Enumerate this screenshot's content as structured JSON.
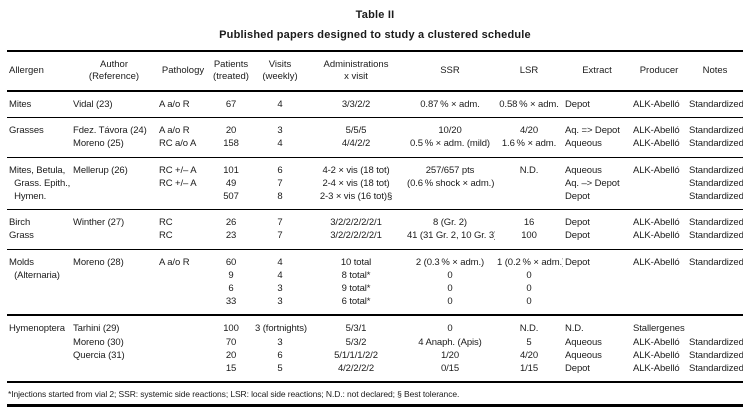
{
  "title": "Table II",
  "subtitle": "Published papers designed to study a clustered schedule",
  "footnote": "*Injections started from vial 2; SSR: systemic side reactions; LSR: local side reactions; N.D.: not declared; § Best tolerance.",
  "table": {
    "columns": [
      "Allergen",
      "Author\n(Reference)",
      "Pathology",
      "Patients\n(treated)",
      "Visits\n(weekly)",
      "Administrations\nx visit",
      "SSR",
      "LSR",
      "Extract",
      "Producer",
      "Notes"
    ],
    "groups": [
      {
        "rule": "thin",
        "rows": [
          [
            "Mites",
            "Vidal (23)",
            "A a/o R",
            "67",
            "4",
            "3/3/2/2",
            "0.87 % × adm.",
            "0.58 % × adm.",
            "Depot",
            "ALK-Abelló",
            "Standardized"
          ]
        ]
      },
      {
        "rule": "thin",
        "rows": [
          [
            "Grasses",
            "Fdez. Távora (24)",
            "A a/o R",
            "20",
            "3",
            "5/5/5",
            "10/20",
            "4/20",
            "Aq. => Depot",
            "ALK-Abelló",
            "Standardized"
          ],
          [
            "",
            "Moreno (25)",
            "RC a/o A",
            "158",
            "4",
            "4/4/2/2",
            "0.5 % × adm. (mild)",
            "1.6 % × adm.",
            "Aqueous",
            "ALK-Abelló",
            "Standardized"
          ]
        ]
      },
      {
        "rule": "thin",
        "rows": [
          [
            "Mites, Betula,",
            "Mellerup (26)",
            "RC +/– A",
            "101",
            "6",
            "4-2 × vis (18 tot)",
            "257/657 pts",
            "N.D.",
            "Aqueous",
            "ALK-Abelló",
            "Standardized"
          ],
          [
            "  Grass. Epith.,",
            "",
            "RC +/– A",
            "49",
            "7",
            "2-4 × vis (18 tot)",
            "(0.6 % shock × adm.)",
            "",
            "Aq. –> Depot",
            "",
            "Standardized"
          ],
          [
            "  Hymen.",
            "",
            "",
            "507",
            "8",
            "2-3 × vis (16 tot)§",
            "",
            "",
            "Depot",
            "",
            "Standardized"
          ]
        ]
      },
      {
        "rule": "thin",
        "rows": [
          [
            "Birch",
            "Winther (27)",
            "RC",
            "26",
            "7",
            "3/2/2/2/2/2/1",
            "8 (Gr. 2)",
            "16",
            "Depot",
            "ALK-Abelló",
            "Standardized"
          ],
          [
            "Grass",
            "",
            "RC",
            "23",
            "7",
            "3/2/2/2/2/2/1",
            "41 (31 Gr. 2, 10 Gr. 3)",
            "100",
            "Depot",
            "ALK-Abelló",
            "Standardized"
          ]
        ]
      },
      {
        "rule": "thin",
        "rows": [
          [
            "Molds",
            "Moreno (28)",
            "A a/o R",
            "60",
            "4",
            "10 total",
            "2 (0.3 % × adm.)",
            "1 (0.2 % × adm.)",
            "Depot",
            "ALK-Abelló",
            "Standardized"
          ],
          [
            "  (Alternaria)",
            "",
            "",
            "9",
            "4",
            "8 total*",
            "0",
            "0",
            "",
            "",
            ""
          ],
          [
            "",
            "",
            "",
            "6",
            "3",
            "9 total*",
            "0",
            "0",
            "",
            "",
            ""
          ],
          [
            "",
            "",
            "",
            "33",
            "3",
            "6 total*",
            "0",
            "0",
            "",
            "",
            ""
          ]
        ]
      },
      {
        "rule": "thick",
        "rows": [
          [
            "Hymenoptera",
            "Tarhini (29)",
            "",
            "100",
            "3 (fortnights)",
            "5/3/1",
            "0",
            "N.D.",
            "N.D.",
            "Stallergenes",
            ""
          ],
          [
            "",
            "Moreno (30)",
            "",
            "70",
            "3",
            "5/3/2",
            "4 Anaph. (Apis)",
            "5",
            "Aqueous",
            "ALK-Abelló",
            "Standardized"
          ],
          [
            "",
            "Quercia (31)",
            "",
            "20",
            "6",
            "5/1/1/1/2/2",
            "1/20",
            "4/20",
            "Aqueous",
            "ALK-Abelló",
            "Standardized"
          ],
          [
            "",
            "",
            "",
            "15",
            "5",
            "4/2/2/2/2",
            "0/15",
            "1/15",
            "Depot",
            "ALK-Abelló",
            "Standardized"
          ]
        ]
      }
    ]
  }
}
